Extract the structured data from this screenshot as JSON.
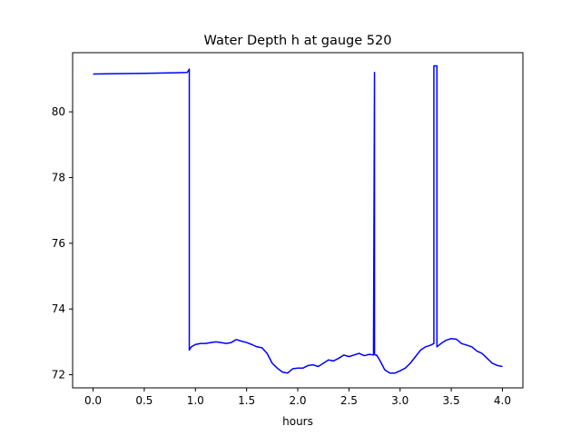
{
  "chart_data": {
    "type": "line",
    "title": "Water Depth h at gauge 520",
    "xlabel": "hours",
    "ylabel": "",
    "xlim": [
      -0.2,
      4.2
    ],
    "ylim": [
      71.6,
      81.8
    ],
    "xticks": [
      0.0,
      0.5,
      1.0,
      1.5,
      2.0,
      2.5,
      3.0,
      3.5,
      4.0
    ],
    "xtick_labels": [
      "0.0",
      "0.5",
      "1.0",
      "1.5",
      "2.0",
      "2.5",
      "3.0",
      "3.5",
      "4.0"
    ],
    "yticks": [
      72,
      74,
      76,
      78,
      80
    ],
    "ytick_labels": [
      "72",
      "74",
      "76",
      "78",
      "80"
    ],
    "grid": false,
    "series": [
      {
        "color": "#0000ff",
        "x": [
          0.0,
          0.2,
          0.5,
          0.8,
          0.92,
          0.94,
          0.94,
          0.96,
          1.0,
          1.05,
          1.1,
          1.15,
          1.2,
          1.25,
          1.3,
          1.35,
          1.4,
          1.45,
          1.5,
          1.55,
          1.6,
          1.65,
          1.7,
          1.75,
          1.8,
          1.85,
          1.9,
          1.95,
          2.0,
          2.05,
          2.1,
          2.15,
          2.2,
          2.25,
          2.3,
          2.35,
          2.4,
          2.45,
          2.5,
          2.55,
          2.6,
          2.65,
          2.7,
          2.74,
          2.75,
          2.75,
          2.77,
          2.77,
          2.8,
          2.85,
          2.9,
          2.95,
          3.0,
          3.05,
          3.1,
          3.15,
          3.2,
          3.25,
          3.3,
          3.33,
          3.33,
          3.36,
          3.36,
          3.4,
          3.45,
          3.5,
          3.55,
          3.6,
          3.65,
          3.7,
          3.75,
          3.8,
          3.85,
          3.9,
          3.95,
          4.0
        ],
        "y": [
          81.15,
          81.16,
          81.17,
          81.19,
          81.2,
          81.3,
          72.75,
          72.85,
          72.92,
          72.95,
          72.95,
          72.98,
          73.0,
          72.98,
          72.95,
          72.98,
          73.07,
          73.02,
          72.98,
          72.92,
          72.85,
          72.82,
          72.65,
          72.35,
          72.2,
          72.08,
          72.05,
          72.18,
          72.2,
          72.2,
          72.28,
          72.3,
          72.25,
          72.35,
          72.45,
          72.42,
          72.5,
          72.6,
          72.55,
          72.6,
          72.65,
          72.58,
          72.62,
          72.6,
          81.2,
          72.62,
          72.58,
          72.6,
          72.45,
          72.15,
          72.05,
          72.05,
          72.12,
          72.2,
          72.35,
          72.55,
          72.75,
          72.85,
          72.9,
          72.95,
          81.4,
          81.4,
          72.85,
          72.95,
          73.05,
          73.1,
          73.08,
          72.95,
          72.9,
          72.85,
          72.72,
          72.65,
          72.5,
          72.35,
          72.28,
          72.25
        ]
      }
    ]
  }
}
